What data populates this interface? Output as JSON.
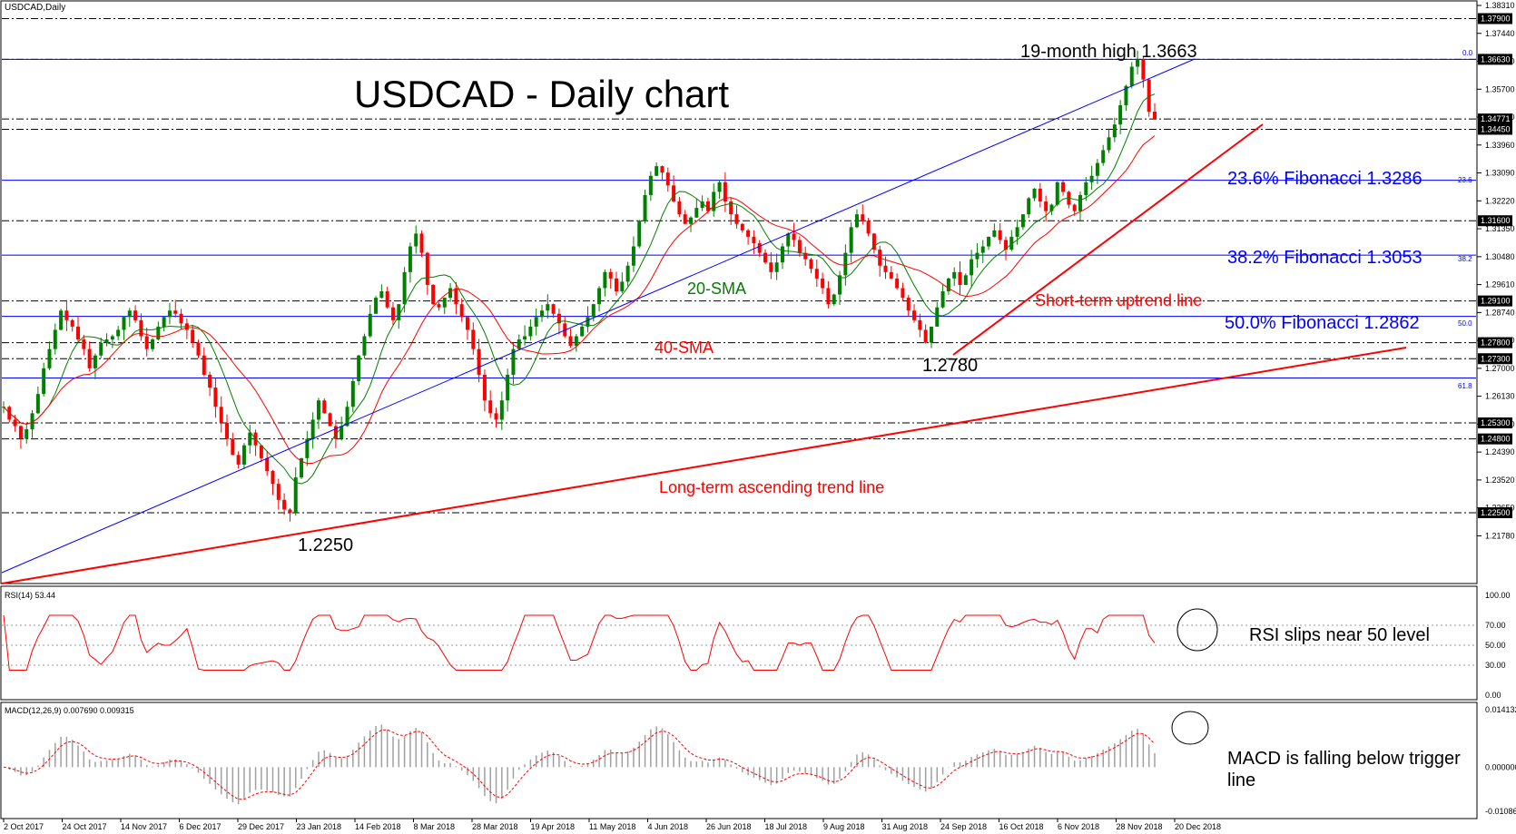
{
  "chart_data": {
    "type": "line",
    "symbol_label": "USDCAD,Daily",
    "title": "USDCAD - Daily chart",
    "x_tick_labels": [
      "2 Oct 2017",
      "24 Oct 2017",
      "14 Nov 2017",
      "6 Dec 2017",
      "29 Dec 2017",
      "23 Jan 2018",
      "14 Feb 2018",
      "8 Mar 2018",
      "28 Mar 2018",
      "19 Apr 2018",
      "11 May 2018",
      "4 Jun 2018",
      "26 Jun 2018",
      "18 Jul 2018",
      "9 Aug 2018",
      "31 Aug 2018",
      "24 Sep 2018",
      "16 Oct 2018",
      "6 Nov 2018",
      "28 Nov 2018",
      "20 Dec 2018"
    ],
    "price_axis": {
      "ylim": [
        1.21,
        1.3831
      ],
      "tick_labels": [
        "1.38310",
        "1.37440",
        "1.36570",
        "1.35700",
        "1.34830",
        "1.33960",
        "1.33090",
        "1.32220",
        "1.31350",
        "1.30480",
        "1.29610",
        "1.28740",
        "1.27870",
        "1.27000",
        "1.26130",
        "1.25260",
        "1.24390",
        "1.23520",
        "1.22650",
        "1.21780"
      ],
      "boxed_levels": [
        "1.37900",
        "1.36630",
        "1.34771",
        "1.34450",
        "1.31600",
        "1.29100",
        "1.27800",
        "1.27300",
        "1.25300",
        "1.24800",
        "1.22500"
      ]
    },
    "series": [
      {
        "name": "20-SMA",
        "color": "#008000"
      },
      {
        "name": "40-SMA",
        "color": "#ff0000"
      }
    ],
    "ohlc_close_path": [
      1.258,
      1.254,
      1.252,
      1.248,
      1.251,
      1.256,
      1.262,
      1.27,
      1.276,
      1.282,
      1.288,
      1.285,
      1.283,
      1.279,
      1.276,
      1.27,
      1.274,
      1.278,
      1.279,
      1.28,
      1.282,
      1.286,
      1.288,
      1.285,
      1.28,
      1.276,
      1.279,
      1.283,
      1.286,
      1.288,
      1.287,
      1.284,
      1.282,
      1.278,
      1.274,
      1.268,
      1.264,
      1.258,
      1.253,
      1.248,
      1.243,
      1.24,
      1.246,
      1.25,
      1.246,
      1.242,
      1.238,
      1.234,
      1.229,
      1.226,
      1.225,
      1.236,
      1.242,
      1.248,
      1.254,
      1.26,
      1.256,
      1.252,
      1.248,
      1.252,
      1.258,
      1.266,
      1.274,
      1.28,
      1.287,
      1.292,
      1.294,
      1.289,
      1.285,
      1.29,
      1.3,
      1.308,
      1.312,
      1.306,
      1.296,
      1.29,
      1.289,
      1.292,
      1.295,
      1.29,
      1.286,
      1.282,
      1.276,
      1.268,
      1.26,
      1.256,
      1.254,
      1.26,
      1.268,
      1.276,
      1.279,
      1.28,
      1.283,
      1.286,
      1.288,
      1.29,
      1.287,
      1.284,
      1.28,
      1.277,
      1.28,
      1.283,
      1.286,
      1.29,
      1.295,
      1.3,
      1.298,
      1.294,
      1.297,
      1.302,
      1.308,
      1.316,
      1.324,
      1.33,
      1.333,
      1.331,
      1.327,
      1.322,
      1.318,
      1.315,
      1.317,
      1.32,
      1.322,
      1.319,
      1.325,
      1.328,
      1.322,
      1.318,
      1.315,
      1.313,
      1.311,
      1.309,
      1.306,
      1.303,
      1.3,
      1.303,
      1.308,
      1.312,
      1.31,
      1.306,
      1.304,
      1.301,
      1.298,
      1.295,
      1.29,
      1.293,
      1.299,
      1.306,
      1.314,
      1.318,
      1.316,
      1.312,
      1.307,
      1.302,
      1.3,
      1.298,
      1.295,
      1.292,
      1.288,
      1.285,
      1.282,
      1.278,
      1.283,
      1.289,
      1.294,
      1.298,
      1.3,
      1.296,
      1.299,
      1.304,
      1.306,
      1.308,
      1.311,
      1.313,
      1.31,
      1.307,
      1.311,
      1.314,
      1.318,
      1.323,
      1.326,
      1.322,
      1.319,
      1.321,
      1.328,
      1.325,
      1.321,
      1.319,
      1.324,
      1.328,
      1.33,
      1.334,
      1.338,
      1.342,
      1.346,
      1.352,
      1.358,
      1.364,
      1.3663,
      1.36,
      1.35,
      1.3477
    ]
  },
  "price_labels": {
    "high_label": "19-month high 1.3663",
    "fib_0": "0.0",
    "fib_236": "23.6% Fibonacci 1.3286",
    "fib_236_small": "23.6",
    "fib_382": "38.2% Fibonacci 1.3053",
    "fib_382_small": "38.2",
    "fib_50": "50.0% Fibonacci 1.2862",
    "fib_50_small": "50.0",
    "fib_618_small": "61.8",
    "low_1": "1.2250",
    "low_2": "1.2780",
    "sma20": "20-SMA",
    "sma40": "40-SMA",
    "short_trend": "Short-term uptrend line",
    "long_trend": "Long-term ascending trend line"
  },
  "rsi": {
    "header": "RSI(14) 53.44",
    "tick_labels": [
      "100.00",
      "70.00",
      "50.00",
      "30.00",
      "0.00"
    ],
    "note": "RSI slips near 50 level",
    "color": "#ff0000"
  },
  "macd": {
    "header": "MACD(12,26,9) 0.007690 0.009315",
    "tick_labels": [
      "0.014132",
      "0.000000",
      "-0.010867"
    ],
    "note_line1": "MACD is falling below trigger",
    "note_line2": "line",
    "signal_color": "#ff0000",
    "hist_color": "#a0a0a0"
  },
  "colors": {
    "fib_line": "#0000ff",
    "trend_line": "#ff0000",
    "candle_up": "#008000",
    "candle_down": "#ff0000",
    "dash_line": "#000000"
  }
}
